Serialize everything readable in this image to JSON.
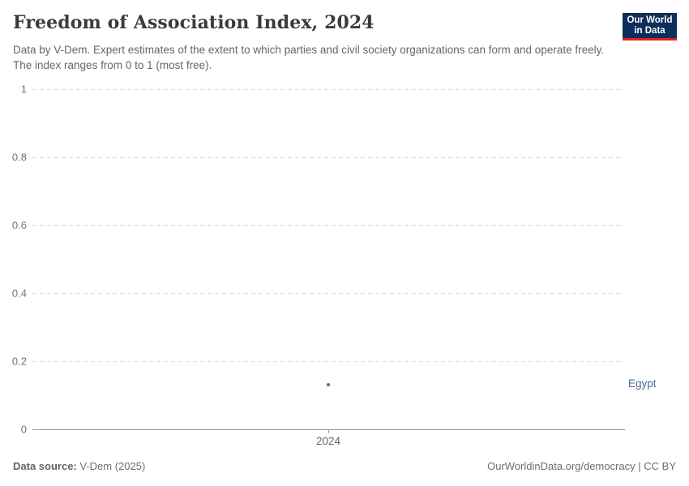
{
  "header": {
    "title": "Freedom of Association Index, 2024",
    "subtitle": "Data by V-Dem. Expert estimates of the extent to which parties and civil society organizations can form and operate freely. The index ranges from 0 to 1 (most free).",
    "logo": {
      "line1": "Our World",
      "line2": "in Data"
    }
  },
  "chart_data": {
    "type": "scatter",
    "title": "Freedom of Association Index, 2024",
    "x": [
      2024
    ],
    "series": [
      {
        "name": "Egypt",
        "values": [
          0.13
        ],
        "color": "#4c6a9c"
      }
    ],
    "xlabel": "",
    "ylabel": "",
    "ylim": [
      0,
      1
    ],
    "yticks": [
      0,
      0.2,
      0.4,
      0.6,
      0.8,
      1
    ],
    "ytick_labels_display": [
      "1",
      "0.8",
      "0.6",
      "0.4",
      "0.2",
      "0"
    ],
    "xtick_labels": [
      "2024"
    ],
    "grid": "horizontal-dashed",
    "legend_position": "right-entity-label",
    "entity_label": "Egypt"
  },
  "footer": {
    "source_label": "Data source:",
    "source_value": "V-Dem (2025)",
    "credit": "OurWorldinData.org/democracy | CC BY"
  },
  "colors": {
    "accent_blue": "#4c6a9c",
    "logo_navy": "#0d2e5a",
    "logo_red": "#dc261d",
    "gridline": "#dcdcdc",
    "axis_line": "#999999"
  }
}
